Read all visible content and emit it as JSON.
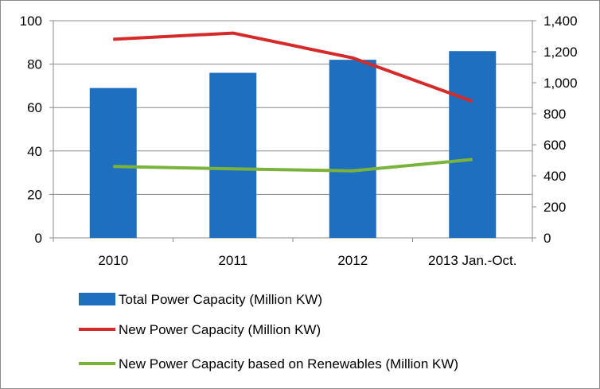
{
  "chart_data": {
    "type": "bar",
    "categories": [
      "2010",
      "2011",
      "2012",
      "2013 Jan.-Oct."
    ],
    "series": [
      {
        "name": "Total Power Capacity (Million KW)",
        "type": "bar",
        "axis": "left",
        "color": "#1f6fbf",
        "values": [
          69,
          76,
          82,
          86
        ]
      },
      {
        "name": "New Power Capacity (Million KW)",
        "type": "line",
        "axis": "right",
        "color": "#d42a2a",
        "values": [
          1280,
          1320,
          1160,
          880
        ]
      },
      {
        "name": "New Power Capacity based on Renewables (Million KW)",
        "type": "line",
        "axis": "right",
        "color": "#7ab23c",
        "values": [
          460,
          445,
          432,
          505
        ]
      }
    ],
    "left_axis": {
      "ylim": [
        0,
        100
      ],
      "ticks": [
        "0",
        "20",
        "40",
        "60",
        "80",
        "100"
      ]
    },
    "right_axis": {
      "ylim": [
        0,
        1400
      ],
      "ticks": [
        "0",
        "200",
        "400",
        "600",
        "800",
        "1,000",
        "1,200",
        "1,400"
      ]
    },
    "grid": "horizontal",
    "legend_position": "bottom-left"
  }
}
